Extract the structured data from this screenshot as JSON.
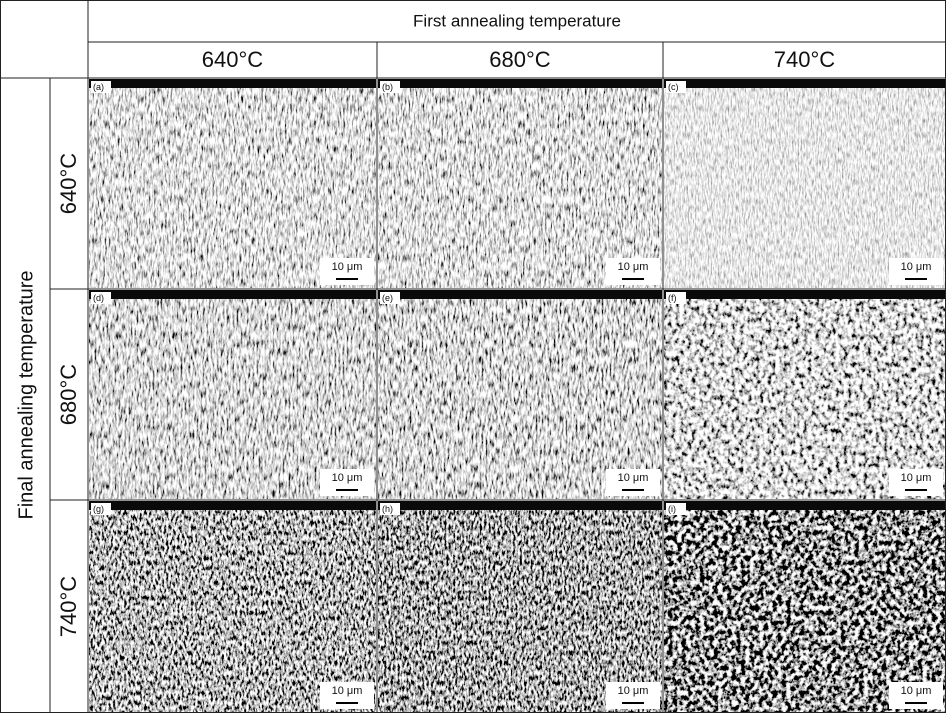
{
  "header": {
    "title": "First annealing temperature",
    "columns": [
      "640°C",
      "680°C",
      "740°C"
    ]
  },
  "rows_title": "Final annealing temperature",
  "rows": [
    "640°C",
    "680°C",
    "740°C"
  ],
  "panels": [
    [
      {
        "label": "(a)",
        "scale": "10 μm"
      },
      {
        "label": "(b)",
        "scale": "10 μm"
      },
      {
        "label": "(c)",
        "scale": "10 μm"
      }
    ],
    [
      {
        "label": "(d)",
        "scale": "10 μm"
      },
      {
        "label": "(e)",
        "scale": "10 μm"
      },
      {
        "label": "(f)",
        "scale": "10 μm"
      }
    ],
    [
      {
        "label": "(g)",
        "scale": "10 μm"
      },
      {
        "label": "(h)",
        "scale": "10 μm"
      },
      {
        "label": "(i)",
        "scale": "10 μm"
      }
    ]
  ]
}
